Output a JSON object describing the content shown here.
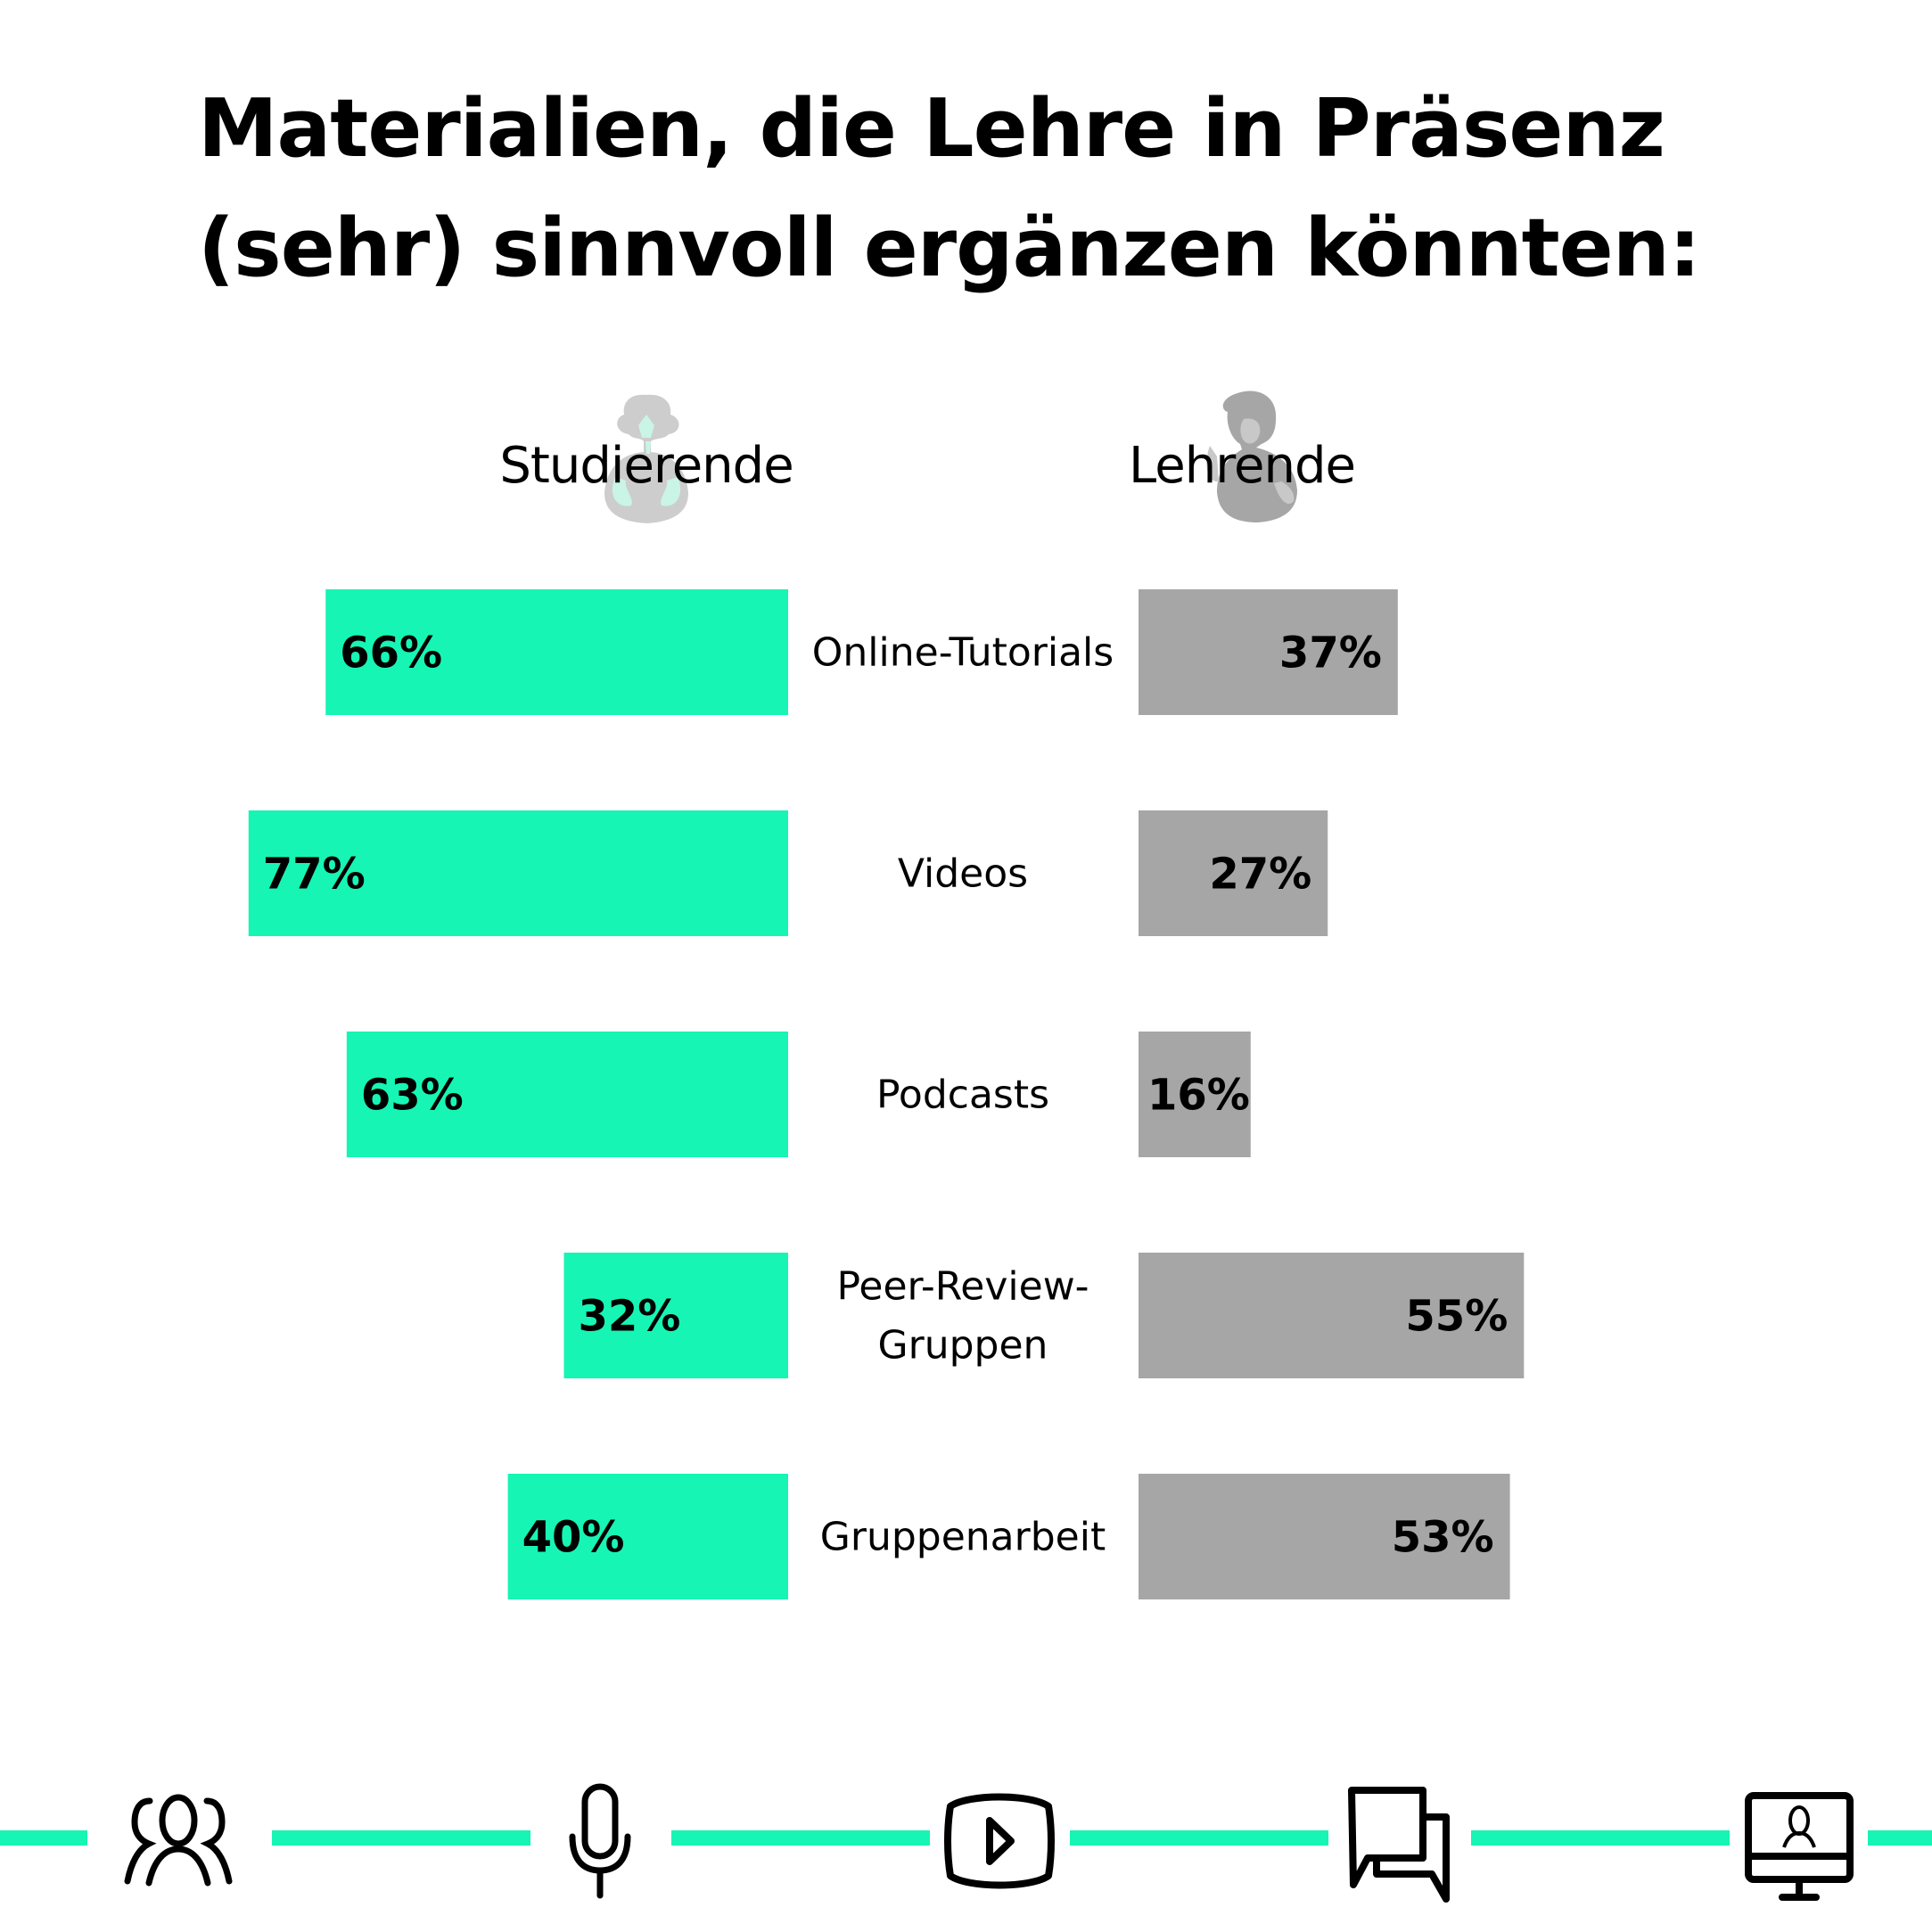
{
  "title_lines": [
    "Materialien, die Lehre in Präsenz",
    "(sehr) sinnvoll ergänzen könnten:"
  ],
  "colors": {
    "students": "#16F5B4",
    "teachers": "#A6A6A6",
    "text": "#000000",
    "background": "#FFFFFF"
  },
  "groups": {
    "left": {
      "label": "Studierende",
      "avatar": "student-avatar"
    },
    "right": {
      "label": "Lehrende",
      "avatar": "teacher-avatar"
    }
  },
  "chart_data": {
    "type": "bar",
    "subtype": "diverging-horizontal (butterfly)",
    "title": "Materialien, die Lehre in Präsenz (sehr) sinnvoll ergänzen könnten:",
    "categories": [
      "Online-Tutorials",
      "Videos",
      "Podcasts",
      "Peer-Review-\nGruppen",
      "Gruppenarbeit"
    ],
    "series": [
      {
        "name": "Studierende",
        "side": "left",
        "color": "#16F5B4",
        "values": [
          66,
          77,
          63,
          32,
          40
        ]
      },
      {
        "name": "Lehrende",
        "side": "right",
        "color": "#A6A6A6",
        "values": [
          37,
          27,
          16,
          55,
          53
        ]
      }
    ],
    "value_labels": {
      "Studierende": [
        "66%",
        "77%",
        "63%",
        "32%",
        "40%"
      ],
      "Lehrende": [
        "37%",
        "27%",
        "16%",
        "55%",
        "53%"
      ]
    },
    "unit": "%",
    "xlabel": "",
    "ylabel": "",
    "xlim": [
      0,
      100
    ],
    "grid": false,
    "legend": "top (group headers above each side)"
  },
  "footer": {
    "icons": [
      "group-icon",
      "microphone-icon",
      "video-play-icon",
      "chat-bubbles-icon",
      "video-call-monitor-icon"
    ]
  }
}
